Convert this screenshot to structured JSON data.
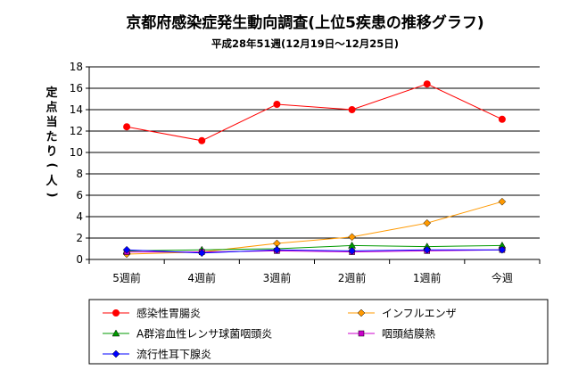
{
  "chart_data": {
    "type": "line",
    "title": "京都府感染症発生動向調査(上位5疾患の推移グラフ)",
    "subtitle": "平成28年51週(12月19日〜12月25日)",
    "xlabel": "",
    "ylabel": "定点当たり(人)",
    "ylim": [
      0,
      18
    ],
    "yticks": [
      0,
      2,
      4,
      6,
      8,
      10,
      12,
      14,
      16,
      18
    ],
    "grid": true,
    "legend_position": "bottom",
    "categories": [
      "5週前",
      "4週前",
      "3週前",
      "2週前",
      "1週前",
      "今週"
    ],
    "series": [
      {
        "name": "感染性胃腸炎",
        "color": "#ff0000",
        "marker": "circle",
        "values": [
          12.4,
          11.1,
          14.5,
          14.0,
          16.4,
          13.1
        ]
      },
      {
        "name": "インフルエンザ",
        "color": "#ff9900",
        "marker": "diamond",
        "values": [
          0.5,
          0.7,
          1.5,
          2.1,
          3.4,
          5.4
        ]
      },
      {
        "name": "A群溶血性レンサ球菌咽頭炎",
        "color": "#009900",
        "marker": "triangle",
        "values": [
          0.8,
          0.9,
          1.0,
          1.3,
          1.2,
          1.3
        ]
      },
      {
        "name": "咽頭結膜熱",
        "color": "#cc00cc",
        "marker": "square",
        "values": [
          0.7,
          0.7,
          0.8,
          0.7,
          0.8,
          0.9
        ]
      },
      {
        "name": "流行性耳下腺炎",
        "color": "#0000ff",
        "marker": "diamond",
        "values": [
          0.9,
          0.6,
          0.9,
          0.8,
          0.9,
          0.9
        ]
      }
    ]
  }
}
